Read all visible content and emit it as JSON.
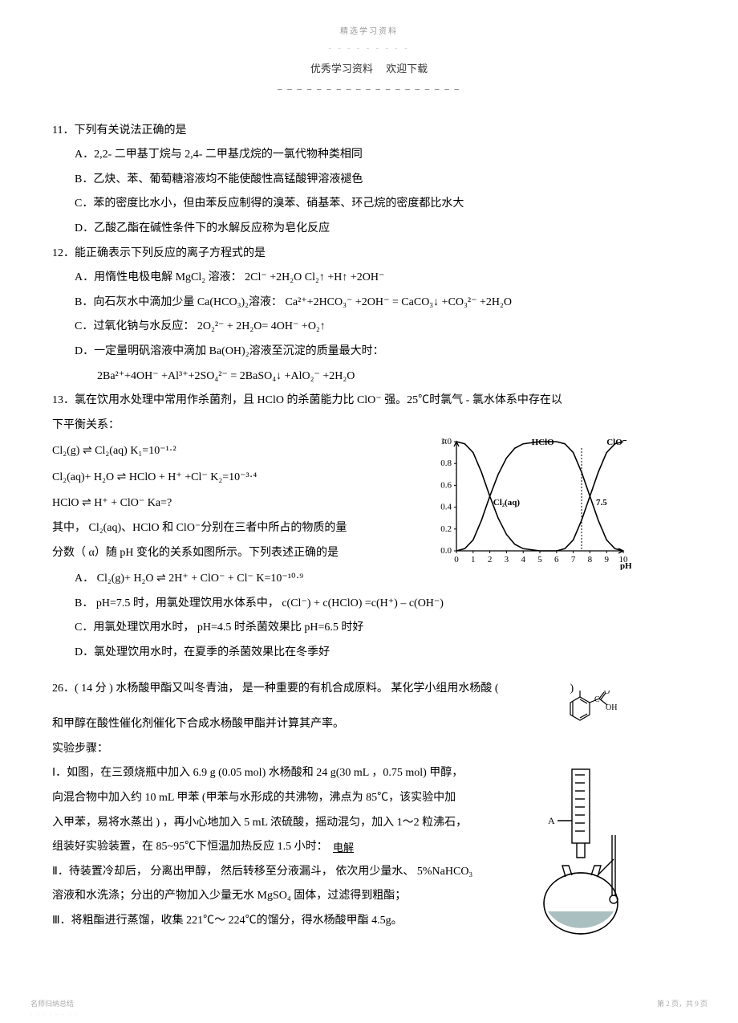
{
  "header": {
    "small": "精选学习资料",
    "dash1": "- - - - - - - - -",
    "main_left": "优秀学习资料",
    "main_right": "欢迎下载",
    "underline": "– – – – – – – – – – – – – – – – – – –"
  },
  "q11": {
    "stem": "11．下列有关说法正确的是",
    "A": "A．2,2- 二甲基丁烷与    2,4- 二甲基戊烷的一氯代物种类相同",
    "B": "B．乙炔、苯、葡萄糖溶液均不能使酸性高锰酸钾溶液褪色",
    "C": "C．苯的密度比水小，但由苯反应制得的溴苯、硝基苯、环己烷的密度都比水大",
    "D": "D．乙酸乙酯在碱性条件下的水解反应称为皂化反应"
  },
  "q12": {
    "stem": "12．能正确表示下列反应的离子方程式的是",
    "A": "A．用惰性电极电解    MgCl₂ 溶液： 2Cl⁻ +2H₂O        Cl₂↑  +H↑  +2OH⁻",
    "B": "B．向石灰水中滴加少量    Ca(HCO₃)₂溶液： Ca²⁺+2HCO₃⁻ +2OH⁻ = CaCO₃↓  +CO₃²⁻ +2H₂O",
    "C": "C．过氧化钠与水反应：   2O₂²⁻ + 2H₂O= 4OH⁻ +O₂↑",
    "D": "D．一定量明矾溶液中滴加     Ba(OH)₂溶液至沉淀的质量最大时：",
    "D2": "2Ba²⁺+4OH⁻ +Al³⁺+2SO₄²⁻ = 2BaSO₄↓  +AlO₂⁻ +2H₂O"
  },
  "q13": {
    "stem": "13．氯在饮用水处理中常用作杀菌剂，且      HClO 的杀菌能力比    ClO⁻ 强。25℃时氯气 - 氯水体系中存在以",
    "stem2": "下平衡关系：",
    "eq1a": "Cl₂(g) ",
    "eq1b": " Cl₂(aq)       K₁=10⁻¹·²",
    "eq2a": "Cl₂(aq)+ H₂O ",
    "eq2b": " HClO + H⁺ +Cl⁻       K₂=10⁻³·⁴",
    "eq3a": "HClO   ",
    "eq3b": " H⁺ + ClO⁻        Ka=?",
    "line4": "其中， Cl₂(aq)、HClO 和 ClO⁻分别在三者中所占的物质的量",
    "line5": "分数（ α）随 pH 变化的关系如图所示。下列表述正确的是",
    "Aa": "A． Cl₂(g)+ H₂O ",
    "Ab": " 2H⁺ + ClO⁻  + Cl⁻       K=10⁻¹⁰·⁹",
    "B": "B． pH=7.5 时，用氯处理饮用水体系中，    c(Cl⁻) + c(HClO) =c(H⁺) – c(OH⁻)",
    "C": "C．用氯处理饮用水时，   pH=4.5 时杀菌效果比   pH=6.5 时好",
    "D": "D．氯处理饮用水时，在夏季的杀菌效果比在冬季好"
  },
  "chart": {
    "type": "line",
    "xlabel": "pH",
    "ylabel": "α",
    "xlim": [
      0,
      10
    ],
    "ylim": [
      0,
      1.0
    ],
    "xtick_step": 1,
    "ytick_step": 0.2,
    "background_color": "#ffffff",
    "grid": false,
    "axis_color": "#000000",
    "font_size": 11,
    "marker_pH": 7.5,
    "series": [
      {
        "name": "Cl₂(aq)",
        "label_pos": {
          "x": 2.2,
          "y": 0.42
        },
        "color": "#000000",
        "points": [
          [
            0,
            1.0
          ],
          [
            0.5,
            0.98
          ],
          [
            1,
            0.9
          ],
          [
            1.5,
            0.72
          ],
          [
            2,
            0.5
          ],
          [
            2.5,
            0.3
          ],
          [
            3,
            0.15
          ],
          [
            3.5,
            0.06
          ],
          [
            4,
            0.02
          ],
          [
            5,
            0.0
          ]
        ]
      },
      {
        "name": "HClO",
        "label_pos": {
          "x": 4.5,
          "y": 0.97
        },
        "color": "#000000",
        "points": [
          [
            0,
            0.0
          ],
          [
            0.5,
            0.02
          ],
          [
            1,
            0.1
          ],
          [
            1.5,
            0.28
          ],
          [
            2,
            0.5
          ],
          [
            2.5,
            0.7
          ],
          [
            3,
            0.85
          ],
          [
            3.5,
            0.94
          ],
          [
            4,
            0.98
          ],
          [
            5,
            1.0
          ],
          [
            6,
            1.0
          ],
          [
            6.5,
            0.98
          ],
          [
            7,
            0.9
          ],
          [
            7.5,
            0.72
          ],
          [
            8,
            0.5
          ],
          [
            8.5,
            0.28
          ],
          [
            9,
            0.1
          ],
          [
            9.5,
            0.02
          ],
          [
            10,
            0.0
          ]
        ]
      },
      {
        "name": "ClO⁻",
        "label_pos": {
          "x": 9.0,
          "y": 0.97
        },
        "color": "#000000",
        "points": [
          [
            5,
            0.0
          ],
          [
            6,
            0.0
          ],
          [
            6.5,
            0.02
          ],
          [
            7,
            0.1
          ],
          [
            7.5,
            0.28
          ],
          [
            8,
            0.5
          ],
          [
            8.5,
            0.72
          ],
          [
            9,
            0.9
          ],
          [
            9.5,
            0.98
          ],
          [
            10,
            1.0
          ]
        ]
      }
    ]
  },
  "q26": {
    "stem": "26．( 14 分 ) 水杨酸甲酯又叫冬青油，   是一种重要的有机合成原料。   某化学小组用水杨酸    (",
    "stem_end": ")",
    "line2": "和甲醇在酸性催化剂催化下合成水杨酸甲酯并计算其产率。",
    "line3": "实验步骤：",
    "line4": "Ⅰ．如图，在三颈烧瓶中加入     6.9 g (0.05 mol) 水杨酸和   24 g(30 mL ，0.75 mol) 甲醇，",
    "line5": "向混合物中加入约    10 mL 甲苯 (甲苯与水形成的共沸物，沸点为     85℃，该实验中加",
    "line6": "入甲苯，易将水蒸出   ) ，再小心地加入    5 mL 浓硫酸，摇动混匀，加入    1～2 粒沸石，",
    "line7": "组装好实验装置，在    85~95℃下恒温加热反应   1.5 小时：",
    "overlay": "电解",
    "line8": "Ⅱ．待装置冷却后，  分离出甲醇，  然后转移至分液漏斗，   依次用少量水、  5%NaHCO₃",
    "line9": "溶液和水洗涤；分出的产物加入少量无水     MgSO₄ 固体，过滤得到粗酯；",
    "line10": "Ⅲ．将粗酯进行蒸馏，收集     221℃～ 224℃的馏分，得水杨酸甲酯     4.5g。"
  },
  "molecule": {
    "labels": {
      "OH": "OH",
      "O": "O",
      "C": "C",
      "COH": "OH"
    },
    "color": "#000000"
  },
  "apparatus": {
    "labels": {
      "A": "A"
    },
    "stroke": "#000000",
    "liquid_fill": "#aabfbf"
  },
  "footer": {
    "left": "名师归纳总结",
    "dots": ". . . . . . . .",
    "right": "第 2 页，共 9 页"
  },
  "equil_arrow": "⇌"
}
